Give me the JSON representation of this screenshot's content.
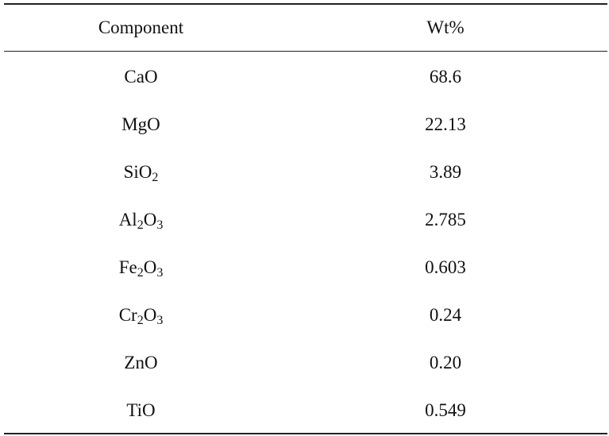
{
  "table": {
    "headers": {
      "component": "Component",
      "value": "Wt%"
    },
    "rows": [
      {
        "component": [
          {
            "t": "CaO"
          }
        ],
        "value": "68.6"
      },
      {
        "component": [
          {
            "t": "MgO"
          }
        ],
        "value": "22.13"
      },
      {
        "component": [
          {
            "t": "SiO"
          },
          {
            "sub": "2"
          }
        ],
        "value": "3.89"
      },
      {
        "component": [
          {
            "t": "Al"
          },
          {
            "sub": "2"
          },
          {
            "t": "O"
          },
          {
            "sub": "3"
          }
        ],
        "value": "2.785"
      },
      {
        "component": [
          {
            "t": "Fe"
          },
          {
            "sub": "2"
          },
          {
            "t": "O"
          },
          {
            "sub": "3"
          }
        ],
        "value": "0.603"
      },
      {
        "component": [
          {
            "t": "Cr"
          },
          {
            "sub": "2"
          },
          {
            "t": "O"
          },
          {
            "sub": "3"
          }
        ],
        "value": "0.24"
      },
      {
        "component": [
          {
            "t": "ZnO"
          }
        ],
        "value": "0.20"
      },
      {
        "component": [
          {
            "t": "TiO"
          }
        ],
        "value": "0.549"
      }
    ]
  }
}
